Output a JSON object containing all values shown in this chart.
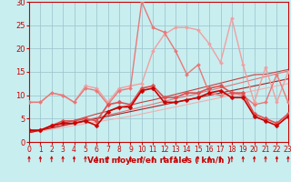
{
  "xlabel": "Vent moyen/en rafales ( km/h )",
  "bg_color": "#c8eef0",
  "grid_color": "#a0c8d0",
  "x_ticks": [
    0,
    1,
    2,
    3,
    4,
    5,
    6,
    7,
    8,
    9,
    10,
    11,
    12,
    13,
    14,
    15,
    16,
    17,
    18,
    19,
    20,
    21,
    22,
    23
  ],
  "ylim": [
    0,
    30
  ],
  "xlim": [
    0,
    23
  ],
  "yticks": [
    0,
    5,
    10,
    15,
    20,
    25,
    30
  ],
  "series": [
    {
      "name": "line1_lightest",
      "color": "#f0a0a0",
      "linewidth": 1.0,
      "marker": "D",
      "markersize": 2.0,
      "y": [
        8.5,
        8.5,
        10.5,
        10.0,
        8.5,
        12.0,
        11.5,
        8.5,
        11.5,
        12.0,
        12.5,
        19.5,
        23.0,
        24.5,
        24.5,
        24.0,
        21.0,
        17.0,
        26.5,
        16.5,
        8.5,
        16.0,
        8.5,
        15.0
      ]
    },
    {
      "name": "line2_light",
      "color": "#e87878",
      "linewidth": 1.0,
      "marker": "D",
      "markersize": 2.0,
      "y": [
        8.5,
        8.5,
        10.5,
        10.0,
        8.5,
        11.5,
        11.0,
        8.0,
        11.0,
        11.5,
        30.0,
        24.5,
        23.5,
        19.5,
        14.5,
        16.5,
        10.5,
        10.0,
        10.5,
        10.0,
        8.0,
        8.5,
        14.5,
        8.5
      ]
    },
    {
      "name": "line3_med",
      "color": "#e05050",
      "linewidth": 1.2,
      "marker": "D",
      "markersize": 2.5,
      "y": [
        2.5,
        2.5,
        3.5,
        4.5,
        4.5,
        5.0,
        4.5,
        8.0,
        8.5,
        8.0,
        11.5,
        12.0,
        9.5,
        9.5,
        10.5,
        10.5,
        11.5,
        12.0,
        10.5,
        10.5,
        6.0,
        5.0,
        4.0,
        6.0
      ]
    },
    {
      "name": "line4_dark",
      "color": "#cc0000",
      "linewidth": 1.2,
      "marker": "D",
      "markersize": 2.5,
      "y": [
        2.5,
        2.5,
        3.5,
        4.0,
        4.0,
        4.5,
        3.5,
        6.5,
        7.5,
        7.5,
        11.0,
        11.5,
        8.5,
        8.5,
        9.0,
        9.5,
        10.5,
        11.0,
        9.5,
        9.5,
        5.5,
        4.5,
        3.5,
        5.5
      ]
    },
    {
      "name": "line5_trend1",
      "color": "#f0b0b0",
      "linewidth": 0.8,
      "marker": null,
      "y": [
        2.0,
        2.3,
        2.7,
        3.1,
        3.5,
        3.9,
        4.3,
        4.7,
        5.1,
        5.5,
        6.0,
        6.5,
        7.0,
        7.5,
        8.0,
        8.5,
        9.0,
        9.5,
        10.0,
        10.5,
        11.0,
        11.5,
        12.0,
        12.5
      ]
    },
    {
      "name": "line6_trend2",
      "color": "#e07878",
      "linewidth": 0.8,
      "marker": null,
      "y": [
        2.0,
        2.5,
        3.0,
        3.6,
        4.1,
        4.7,
        5.2,
        5.8,
        6.3,
        6.9,
        7.5,
        8.1,
        8.7,
        9.3,
        9.8,
        10.4,
        11.0,
        11.6,
        12.2,
        12.8,
        13.4,
        14.0,
        14.6,
        15.2
      ]
    },
    {
      "name": "line7_trend3",
      "color": "#c84040",
      "linewidth": 0.8,
      "marker": null,
      "y": [
        2.0,
        2.6,
        3.3,
        4.0,
        4.6,
        5.3,
        6.0,
        6.6,
        7.3,
        7.9,
        8.5,
        9.0,
        9.6,
        10.2,
        10.8,
        11.4,
        12.0,
        12.6,
        13.2,
        13.8,
        14.4,
        14.5,
        15.0,
        15.5
      ]
    },
    {
      "name": "line8_trend4",
      "color": "#aa2020",
      "linewidth": 0.8,
      "marker": null,
      "y": [
        2.0,
        2.5,
        3.0,
        3.5,
        4.0,
        4.5,
        5.0,
        5.5,
        6.0,
        6.5,
        7.0,
        7.5,
        8.0,
        8.5,
        9.0,
        9.5,
        10.0,
        10.5,
        11.0,
        11.5,
        12.0,
        12.5,
        13.0,
        13.5
      ]
    }
  ],
  "arrow_color": "#cc0000",
  "label_color": "#cc0000",
  "tick_color": "#cc0000",
  "xlabel_fontsize": 6.5,
  "ytick_fontsize": 6,
  "xtick_fontsize": 5.5
}
